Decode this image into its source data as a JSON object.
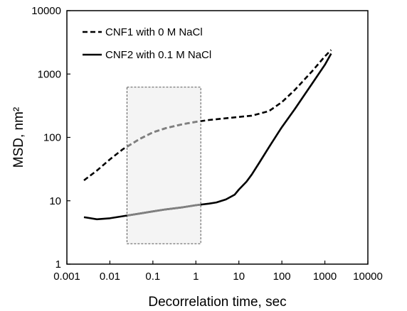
{
  "chart_data": {
    "type": "line",
    "xlabel": "Decorrelation time, sec",
    "ylabel": "MSD, nm²",
    "x_scale": "log",
    "y_scale": "log",
    "xlim": [
      0.001,
      10000
    ],
    "ylim": [
      1,
      10000
    ],
    "x_ticks": [
      "0.001",
      "0.01",
      "0.1",
      "1",
      "10",
      "100",
      "1000",
      "10000"
    ],
    "y_ticks": [
      "1",
      "10",
      "100",
      "1000",
      "10000"
    ],
    "grid": false,
    "legend_position": "top-left",
    "highlight_region": {
      "x": [
        0.025,
        1.3
      ],
      "y": [
        2.1,
        620
      ]
    },
    "series": [
      {
        "name": "CNF1 with 0 M NaCl",
        "style": "dashed",
        "color": "#000000",
        "highlight_color": "#808080",
        "x": [
          0.0025,
          0.005,
          0.01,
          0.02,
          0.05,
          0.1,
          0.2,
          0.5,
          1,
          2,
          5,
          10,
          20,
          50,
          100,
          200,
          500,
          1000,
          1400
        ],
        "y": [
          21,
          30,
          45,
          65,
          95,
          120,
          140,
          162,
          176,
          188,
          200,
          210,
          220,
          260,
          360,
          560,
          1100,
          1900,
          2400
        ]
      },
      {
        "name": "CNF2 with 0.1 M NaCl",
        "style": "solid",
        "color": "#000000",
        "highlight_color": "#808080",
        "x": [
          0.0025,
          0.005,
          0.01,
          0.02,
          0.05,
          0.1,
          0.2,
          0.5,
          1,
          2,
          3,
          5,
          8,
          10,
          15,
          20,
          30,
          50,
          80,
          100,
          200,
          500,
          1000,
          1400
        ],
        "y": [
          5.5,
          5.1,
          5.3,
          5.7,
          6.3,
          6.8,
          7.3,
          7.9,
          8.5,
          9,
          9.4,
          10.5,
          12.5,
          15,
          20,
          26,
          40,
          70,
          115,
          145,
          280,
          700,
          1400,
          2100
        ]
      }
    ]
  }
}
